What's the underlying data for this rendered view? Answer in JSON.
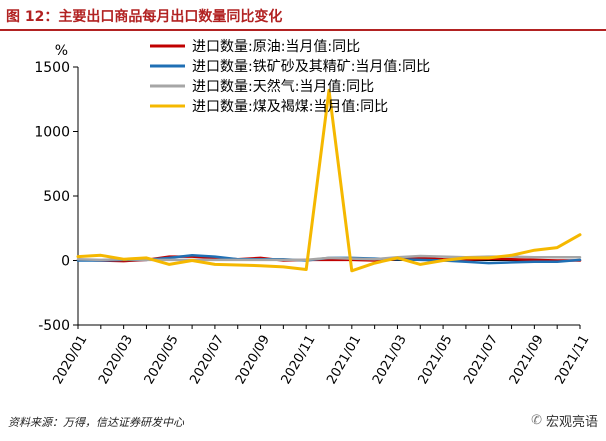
{
  "header": {
    "title": "图 12：主要出口商品每月出口数量同比变化"
  },
  "footer": {
    "source": "资料来源：万得，信达证券研发中心",
    "watermark": "宏观亮语",
    "watermark_icon": "wechat-icon"
  },
  "chart_data": {
    "type": "line",
    "unit": "%",
    "ylim": [
      -500,
      1500
    ],
    "yticks": [
      -500,
      0,
      500,
      1000,
      1500
    ],
    "xtick_labels": [
      "2020/01",
      "2020/03",
      "2020/05",
      "2020/07",
      "2020/09",
      "2020/11",
      "2021/01",
      "2021/03",
      "2021/05",
      "2021/07",
      "2021/09",
      "2021/11"
    ],
    "x": [
      "2020/01",
      "2020/02",
      "2020/03",
      "2020/04",
      "2020/05",
      "2020/06",
      "2020/07",
      "2020/08",
      "2020/09",
      "2020/10",
      "2020/11",
      "2020/12",
      "2021/01",
      "2021/02",
      "2021/03",
      "2021/04",
      "2021/05",
      "2021/06",
      "2021/07",
      "2021/08",
      "2021/09",
      "2021/10",
      "2021/11"
    ],
    "legend_position": "top",
    "grid": false,
    "series": [
      {
        "name": "进口数量:原油:当月值:同比",
        "color": "#c00000",
        "values": [
          5,
          0,
          -5,
          5,
          30,
          30,
          20,
          10,
          20,
          0,
          5,
          5,
          5,
          0,
          10,
          20,
          10,
          5,
          15,
          10,
          5,
          0,
          0
        ]
      },
      {
        "name": "进口数量:铁矿砂及其精矿:当月值:同比",
        "color": "#1f6fb4",
        "values": [
          0,
          0,
          5,
          5,
          20,
          40,
          30,
          10,
          10,
          10,
          0,
          20,
          20,
          15,
          10,
          5,
          0,
          -10,
          -20,
          -15,
          -10,
          -10,
          5
        ]
      },
      {
        "name": "进口数量:天然气:当月值:同比",
        "color": "#a6a6a6",
        "values": [
          10,
          5,
          10,
          5,
          5,
          5,
          5,
          5,
          5,
          5,
          5,
          20,
          15,
          10,
          25,
          35,
          30,
          25,
          30,
          30,
          25,
          25,
          25
        ]
      },
      {
        "name": "进口数量:煤及褐煤:当月值:同比",
        "color": "#f5b800",
        "values": [
          30,
          40,
          10,
          20,
          -30,
          0,
          -30,
          -35,
          -40,
          -50,
          -70,
          1320,
          -80,
          -20,
          20,
          -30,
          0,
          20,
          20,
          40,
          80,
          100,
          200
        ]
      }
    ]
  }
}
